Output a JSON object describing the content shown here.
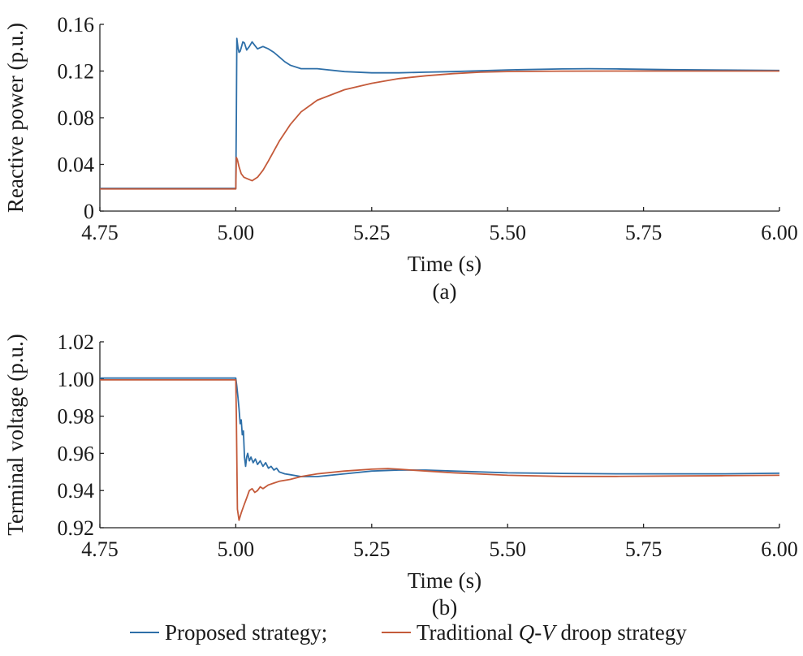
{
  "chart_data": [
    {
      "id": "a",
      "type": "line",
      "panel_label": "(a)",
      "xlabel": "Time (s)",
      "ylabel": "Reactive power (p.u.)",
      "xlim": [
        4.75,
        6.0
      ],
      "ylim": [
        0,
        0.16
      ],
      "xticks": [
        4.75,
        5.0,
        5.25,
        5.5,
        5.75,
        6.0
      ],
      "xtick_labels": [
        "4.75",
        "5.00",
        "5.25",
        "5.50",
        "5.75",
        "6.00"
      ],
      "yticks": [
        0,
        0.04,
        0.08,
        0.12,
        0.16
      ],
      "ytick_labels": [
        "0",
        "0.04",
        "0.08",
        "0.12",
        "0.16"
      ],
      "grid": false,
      "series": [
        {
          "name": "Proposed strategy;",
          "color": "#2e6fa8",
          "x": [
            4.75,
            5.0,
            5.001,
            5.002,
            5.004,
            5.006,
            5.008,
            5.01,
            5.013,
            5.016,
            5.02,
            5.025,
            5.03,
            5.035,
            5.04,
            5.045,
            5.05,
            5.06,
            5.07,
            5.08,
            5.09,
            5.1,
            5.12,
            5.15,
            5.2,
            5.25,
            5.3,
            5.35,
            5.4,
            5.5,
            5.6,
            5.65,
            5.7,
            5.8,
            5.9,
            6.0
          ],
          "y": [
            0.0195,
            0.0195,
            0.08,
            0.148,
            0.14,
            0.136,
            0.137,
            0.14,
            0.145,
            0.144,
            0.138,
            0.141,
            0.145,
            0.142,
            0.139,
            0.14,
            0.141,
            0.139,
            0.136,
            0.132,
            0.128,
            0.125,
            0.122,
            0.122,
            0.1195,
            0.1185,
            0.1185,
            0.119,
            0.1195,
            0.121,
            0.1218,
            0.122,
            0.1218,
            0.1212,
            0.1208,
            0.1205
          ]
        },
        {
          "name": "Traditional Q-V droop strategy",
          "color": "#c45a3a",
          "x": [
            4.75,
            5.0,
            5.001,
            5.003,
            5.006,
            5.01,
            5.015,
            5.02,
            5.025,
            5.03,
            5.04,
            5.05,
            5.06,
            5.08,
            5.1,
            5.12,
            5.15,
            5.2,
            5.25,
            5.3,
            5.35,
            5.4,
            5.45,
            5.5,
            5.6,
            5.7,
            5.8,
            6.0
          ],
          "y": [
            0.019,
            0.019,
            0.046,
            0.044,
            0.038,
            0.032,
            0.029,
            0.028,
            0.027,
            0.026,
            0.029,
            0.035,
            0.043,
            0.06,
            0.074,
            0.085,
            0.095,
            0.104,
            0.1095,
            0.1135,
            0.116,
            0.1178,
            0.119,
            0.1196,
            0.1199,
            0.12,
            0.12,
            0.12
          ]
        }
      ]
    },
    {
      "id": "b",
      "type": "line",
      "panel_label": "(b)",
      "xlabel": "Time (s)",
      "ylabel": "Terminal voltage (p.u.)",
      "xlim": [
        4.75,
        6.0
      ],
      "ylim": [
        0.92,
        1.02
      ],
      "xticks": [
        4.75,
        5.0,
        5.25,
        5.5,
        5.75,
        6.0
      ],
      "xtick_labels": [
        "4.75",
        "5.00",
        "5.25",
        "5.50",
        "5.75",
        "6.00"
      ],
      "yticks": [
        0.92,
        0.94,
        0.96,
        0.98,
        1.0,
        1.02
      ],
      "ytick_labels": [
        "0.92",
        "0.94",
        "0.96",
        "0.98",
        "1.00",
        "1.02"
      ],
      "grid": false,
      "series": [
        {
          "name": "Proposed strategy;",
          "color": "#2e6fa8",
          "x": [
            4.75,
            5.0,
            5.002,
            5.004,
            5.006,
            5.008,
            5.01,
            5.012,
            5.014,
            5.016,
            5.018,
            5.02,
            5.022,
            5.025,
            5.028,
            5.032,
            5.036,
            5.04,
            5.045,
            5.05,
            5.055,
            5.06,
            5.065,
            5.07,
            5.075,
            5.08,
            5.09,
            5.1,
            5.12,
            5.15,
            5.2,
            5.25,
            5.3,
            5.35,
            5.4,
            5.5,
            5.6,
            5.7,
            5.8,
            5.9,
            6.0
          ],
          "y": [
            1.0005,
            1.0005,
            0.996,
            0.99,
            0.984,
            0.976,
            0.978,
            0.97,
            0.972,
            0.958,
            0.953,
            0.958,
            0.96,
            0.956,
            0.958,
            0.955,
            0.957,
            0.954,
            0.956,
            0.953,
            0.955,
            0.952,
            0.953,
            0.951,
            0.952,
            0.95,
            0.949,
            0.9485,
            0.9475,
            0.9475,
            0.949,
            0.9505,
            0.951,
            0.951,
            0.9505,
            0.9495,
            0.9492,
            0.949,
            0.949,
            0.949,
            0.9493
          ]
        },
        {
          "name": "Traditional Q-V droop strategy",
          "color": "#c45a3a",
          "x": [
            4.75,
            5.0,
            5.001,
            5.003,
            5.006,
            5.01,
            5.015,
            5.02,
            5.025,
            5.03,
            5.035,
            5.04,
            5.045,
            5.05,
            5.06,
            5.07,
            5.08,
            5.1,
            5.12,
            5.15,
            5.2,
            5.25,
            5.28,
            5.3,
            5.35,
            5.4,
            5.5,
            5.6,
            5.7,
            5.8,
            5.9,
            6.0
          ],
          "y": [
            0.9995,
            0.9995,
            0.98,
            0.93,
            0.924,
            0.928,
            0.932,
            0.936,
            0.94,
            0.941,
            0.939,
            0.94,
            0.942,
            0.941,
            0.943,
            0.944,
            0.945,
            0.946,
            0.9475,
            0.949,
            0.9505,
            0.9515,
            0.9518,
            0.9515,
            0.9505,
            0.9495,
            0.9482,
            0.9476,
            0.9476,
            0.9478,
            0.948,
            0.9482
          ]
        }
      ]
    }
  ],
  "legend": {
    "placement": "bottom-center",
    "items": [
      {
        "text": "Proposed strategy;",
        "color": "#2e6fa8"
      },
      {
        "text_parts": [
          {
            "t": "Traditional "
          },
          {
            "t": "Q",
            "italic": true
          },
          {
            "t": "-"
          },
          {
            "t": "V",
            "italic": true
          },
          {
            "t": " droop strategy"
          }
        ],
        "color": "#c45a3a"
      }
    ]
  }
}
